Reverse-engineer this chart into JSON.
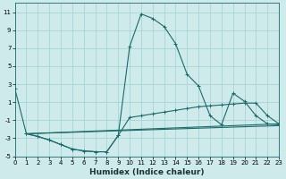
{
  "xlabel": "Humidex (Indice chaleur)",
  "bg_color": "#ceeaea",
  "line_color": "#1a6b6b",
  "grid_color": "#a8d4d4",
  "xlim": [
    0,
    23
  ],
  "ylim": [
    -5,
    12
  ],
  "xticks": [
    0,
    1,
    2,
    3,
    4,
    5,
    6,
    7,
    8,
    9,
    10,
    11,
    12,
    13,
    14,
    15,
    16,
    17,
    18,
    19,
    20,
    21,
    22,
    23
  ],
  "yticks": [
    -5,
    -3,
    -1,
    1,
    3,
    5,
    7,
    9,
    11
  ],
  "series1_x": [
    0,
    1,
    2,
    3,
    4,
    5,
    6,
    7,
    8,
    9,
    10,
    11,
    12,
    13,
    14,
    15,
    16,
    17,
    18,
    19,
    20,
    21,
    22,
    23
  ],
  "series1_y": [
    2.5,
    -2.5,
    -2.8,
    -3.2,
    -3.7,
    -4.2,
    -4.4,
    -4.5,
    -4.5,
    -2.7,
    7.2,
    10.8,
    10.3,
    9.4,
    7.5,
    4.1,
    2.8,
    -0.5,
    -1.5,
    2.0,
    1.1,
    -0.5,
    -1.4,
    -1.5
  ],
  "series2_x": [
    1,
    2,
    3,
    4,
    5,
    6,
    7,
    8,
    9,
    10,
    11,
    12,
    13,
    14,
    15,
    16,
    17,
    18,
    19,
    20,
    21,
    22,
    23
  ],
  "series2_y": [
    -2.5,
    -2.8,
    -3.2,
    -3.7,
    -4.2,
    -4.4,
    -4.5,
    -4.5,
    -2.7,
    -0.7,
    -0.5,
    -0.3,
    -0.1,
    0.1,
    0.3,
    0.5,
    0.6,
    0.7,
    0.8,
    0.9,
    0.9,
    -0.5,
    -1.4
  ],
  "series3_x": [
    1,
    23
  ],
  "series3_y": [
    -2.5,
    -1.4
  ],
  "series4_x": [
    1,
    23
  ],
  "series4_y": [
    -2.5,
    -1.6
  ]
}
